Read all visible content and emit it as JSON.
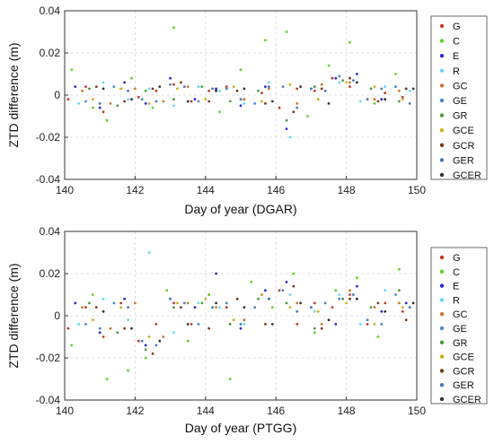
{
  "series_colors": {
    "G": "#c0392b",
    "C": "#5ad42a",
    "E": "#2a2ad6",
    "R": "#66d9f0",
    "GC": "#c7782c",
    "GE": "#4a86c8",
    "GR": "#4f9a3c",
    "GCE": "#c8b020",
    "GCR": "#7a3a1a",
    "GER": "#4a78b8",
    "GCER": "#333333"
  },
  "chart_data": [
    {
      "type": "scatter",
      "title": "",
      "xlabel": "Day of year (DGAR)",
      "ylabel": "ZTD difference (m)",
      "xlim": [
        140,
        150
      ],
      "ylim": [
        -0.04,
        0.04
      ],
      "xticks": [
        "140",
        "142",
        "144",
        "146",
        "148",
        "150"
      ],
      "yticks": [
        "0.04",
        "0.02",
        "0",
        "-0.02",
        "-0.04"
      ],
      "grid": true,
      "legend": "right",
      "legend_entries": [
        "G",
        "C",
        "E",
        "R",
        "GC",
        "GE",
        "GR",
        "GCE",
        "GCR",
        "GER",
        "GCER"
      ],
      "series": [
        {
          "name": "G",
          "x": [
            140.1,
            140.6,
            141.1,
            141.6,
            142.1,
            142.6,
            143.1,
            143.6,
            144.1,
            144.6,
            145.1,
            145.6,
            146.1,
            146.6,
            147.1,
            147.6,
            148.1,
            148.6,
            149.1,
            149.6
          ],
          "y": [
            -0.002,
            0.004,
            -0.008,
            0.003,
            -0.001,
            0.002,
            0.005,
            -0.003,
            0.002,
            0.004,
            -0.002,
            0.001,
            -0.006,
            0.003,
            0.002,
            0.008,
            0.004,
            -0.002,
            0.001,
            -0.001
          ]
        },
        {
          "name": "C",
          "x": [
            140.2,
            140.8,
            141.2,
            141.9,
            142.5,
            143.1,
            143.8,
            144.4,
            145.0,
            145.7,
            146.3,
            146.9,
            147.5,
            148.1,
            148.8,
            149.4
          ],
          "y": [
            0.012,
            -0.006,
            -0.012,
            0.008,
            -0.006,
            0.032,
            0.004,
            -0.008,
            0.012,
            0.026,
            0.03,
            -0.01,
            0.014,
            0.025,
            -0.004,
            0.01
          ]
        },
        {
          "name": "E",
          "x": [
            140.3,
            141.0,
            141.7,
            142.3,
            143.0,
            143.7,
            144.3,
            145.0,
            145.7,
            146.3,
            147.0,
            147.7,
            148.3,
            149.0,
            149.7
          ],
          "y": [
            0.004,
            -0.006,
            0.006,
            -0.004,
            0.008,
            -0.002,
            0.003,
            -0.005,
            0.004,
            -0.016,
            0.003,
            0.008,
            0.01,
            -0.002,
            0.003
          ]
        },
        {
          "name": "R",
          "x": [
            140.4,
            141.1,
            141.8,
            142.4,
            143.1,
            143.8,
            144.4,
            145.1,
            145.8,
            146.4,
            147.1,
            147.8,
            148.4,
            149.1,
            149.8
          ],
          "y": [
            -0.004,
            0.006,
            -0.002,
            0.003,
            -0.005,
            0.004,
            0.002,
            -0.004,
            0.006,
            -0.02,
            0.004,
            0.006,
            -0.003,
            0.004,
            0.002
          ]
        },
        {
          "name": "GC",
          "x": [
            140.5,
            141.3,
            142.0,
            142.8,
            143.5,
            144.3,
            145.1,
            145.8,
            146.6,
            147.3,
            148.1,
            148.8,
            149.5
          ],
          "y": [
            0.002,
            -0.004,
            0.003,
            -0.003,
            0.004,
            0.002,
            -0.002,
            0.003,
            -0.004,
            0.005,
            0.006,
            -0.002,
            0.002
          ]
        },
        {
          "name": "GE",
          "x": [
            140.6,
            141.4,
            142.2,
            143.0,
            143.8,
            144.6,
            145.4,
            146.2,
            147.0,
            147.8,
            148.6,
            149.4
          ],
          "y": [
            -0.003,
            0.004,
            -0.002,
            0.005,
            -0.003,
            0.003,
            -0.004,
            0.004,
            0.003,
            0.009,
            -0.002,
            0.004
          ]
        },
        {
          "name": "GR",
          "x": [
            140.7,
            141.5,
            142.3,
            143.1,
            143.9,
            144.7,
            145.5,
            146.3,
            147.1,
            147.9,
            148.7,
            149.5
          ],
          "y": [
            0.003,
            -0.005,
            0.002,
            -0.002,
            0.004,
            -0.003,
            0.002,
            -0.012,
            0.004,
            0.007,
            0.003,
            -0.003
          ]
        },
        {
          "name": "GCE",
          "x": [
            140.8,
            141.6,
            142.4,
            143.2,
            144.0,
            144.8,
            145.6,
            146.4,
            147.2,
            148.0,
            148.8,
            149.6
          ],
          "y": [
            -0.002,
            0.003,
            -0.004,
            0.003,
            -0.002,
            0.004,
            -0.003,
            0.005,
            -0.002,
            0.006,
            0.004,
            -0.002
          ]
        },
        {
          "name": "GCR",
          "x": [
            140.9,
            141.7,
            142.5,
            143.3,
            144.1,
            144.9,
            145.7,
            146.5,
            147.3,
            148.1,
            148.9,
            149.7
          ],
          "y": [
            0.004,
            -0.003,
            0.003,
            0.006,
            -0.003,
            0.002,
            -0.004,
            -0.008,
            0.003,
            0.008,
            -0.003,
            0.003
          ]
        },
        {
          "name": "GER",
          "x": [
            141.0,
            141.8,
            142.6,
            143.4,
            144.2,
            145.0,
            145.8,
            146.6,
            147.4,
            148.2,
            149.0,
            149.8
          ],
          "y": [
            -0.004,
            0.002,
            -0.003,
            0.004,
            0.003,
            -0.002,
            0.004,
            -0.006,
            0.002,
            0.007,
            0.003,
            -0.004
          ]
        },
        {
          "name": "GCER",
          "x": [
            141.1,
            141.9,
            142.7,
            143.5,
            144.3,
            145.1,
            145.9,
            146.7,
            147.5,
            148.3,
            149.1,
            149.9
          ],
          "y": [
            0.003,
            -0.002,
            0.004,
            -0.003,
            0.002,
            0.003,
            -0.003,
            0.004,
            -0.004,
            0.006,
            -0.002,
            0.003
          ]
        }
      ]
    },
    {
      "type": "scatter",
      "title": "",
      "xlabel": "Day of year (PTGG)",
      "ylabel": "ZTD difference (m)",
      "xlim": [
        140,
        150
      ],
      "ylim": [
        -0.04,
        0.04
      ],
      "xticks": [
        "140",
        "142",
        "144",
        "146",
        "148",
        "150"
      ],
      "yticks": [
        "0.04",
        "0.02",
        "0",
        "-0.02",
        "-0.04"
      ],
      "grid": true,
      "legend": "right",
      "legend_entries": [
        "G",
        "C",
        "E",
        "R",
        "GC",
        "GE",
        "GR",
        "GCE",
        "GCR",
        "GER",
        "GCER"
      ],
      "series": [
        {
          "name": "G",
          "x": [
            140.1,
            140.6,
            141.1,
            141.6,
            142.1,
            142.6,
            143.1,
            143.6,
            144.1,
            144.6,
            145.1,
            145.6,
            146.1,
            146.6,
            147.1,
            147.6,
            148.1,
            148.6,
            149.1,
            149.6
          ],
          "y": [
            -0.006,
            0.004,
            -0.01,
            0.006,
            -0.012,
            -0.004,
            0.006,
            -0.004,
            0.01,
            0.004,
            -0.002,
            0.01,
            0.012,
            -0.004,
            0.006,
            0.004,
            0.01,
            -0.004,
            0.006,
            0.002
          ]
        },
        {
          "name": "C",
          "x": [
            140.2,
            140.8,
            141.2,
            141.8,
            142.3,
            142.9,
            143.5,
            144.1,
            144.7,
            145.3,
            145.9,
            146.5,
            147.1,
            147.7,
            148.3,
            148.9,
            149.5
          ],
          "y": [
            -0.014,
            0.01,
            -0.03,
            -0.026,
            -0.02,
            0.012,
            -0.012,
            0.01,
            -0.03,
            0.016,
            0.004,
            0.02,
            -0.008,
            0.012,
            0.018,
            -0.01,
            0.022
          ]
        },
        {
          "name": "E",
          "x": [
            140.3,
            141.0,
            141.7,
            142.3,
            143.0,
            143.7,
            144.3,
            145.0,
            145.7,
            146.3,
            147.0,
            147.7,
            148.3,
            149.0,
            149.7
          ],
          "y": [
            0.006,
            -0.008,
            0.008,
            -0.014,
            0.008,
            0.004,
            0.02,
            -0.006,
            0.012,
            0.016,
            0.004,
            -0.004,
            0.014,
            0.002,
            0.006
          ]
        },
        {
          "name": "R",
          "x": [
            140.4,
            141.1,
            141.8,
            142.4,
            143.1,
            143.8,
            144.4,
            145.1,
            145.8,
            146.4,
            147.1,
            147.8,
            148.4,
            149.1,
            149.8
          ],
          "y": [
            -0.004,
            0.008,
            -0.002,
            0.03,
            -0.008,
            0.006,
            0.004,
            -0.004,
            0.008,
            0.01,
            0.002,
            0.01,
            -0.004,
            0.012,
            0.004
          ]
        },
        {
          "name": "GC",
          "x": [
            140.5,
            141.3,
            142.0,
            142.8,
            143.5,
            144.3,
            145.1,
            145.8,
            146.6,
            147.3,
            148.1,
            148.8,
            149.5
          ],
          "y": [
            0.004,
            -0.006,
            0.006,
            -0.01,
            0.006,
            0.004,
            -0.002,
            0.008,
            0.006,
            -0.004,
            0.012,
            0.004,
            0.006
          ]
        },
        {
          "name": "GE",
          "x": [
            140.6,
            141.4,
            142.2,
            143.0,
            143.8,
            144.6,
            145.4,
            146.2,
            147.0,
            147.8,
            148.6,
            149.4
          ],
          "y": [
            -0.004,
            0.006,
            -0.012,
            0.008,
            -0.004,
            0.006,
            0.004,
            0.012,
            0.004,
            0.008,
            -0.002,
            0.01
          ]
        },
        {
          "name": "GR",
          "x": [
            140.7,
            141.5,
            142.3,
            143.1,
            143.9,
            144.7,
            145.5,
            146.3,
            147.1,
            147.9,
            148.7,
            149.5
          ],
          "y": [
            0.006,
            -0.008,
            -0.016,
            0.004,
            0.006,
            -0.004,
            0.008,
            0.006,
            -0.006,
            0.008,
            0.004,
            0.012
          ]
        },
        {
          "name": "GCE",
          "x": [
            140.8,
            141.6,
            142.4,
            143.2,
            144.0,
            144.8,
            145.6,
            146.4,
            147.2,
            148.0,
            148.8,
            149.6
          ],
          "y": [
            -0.002,
            0.004,
            -0.01,
            0.006,
            0.008,
            -0.002,
            0.01,
            0.004,
            0.002,
            0.006,
            -0.004,
            0.004
          ]
        },
        {
          "name": "GCR",
          "x": [
            140.9,
            141.7,
            142.5,
            143.3,
            144.1,
            144.9,
            145.7,
            146.5,
            147.3,
            148.1,
            148.9,
            149.7
          ],
          "y": [
            0.004,
            -0.006,
            -0.018,
            0.004,
            -0.006,
            0.008,
            -0.004,
            0.014,
            -0.006,
            0.008,
            0.006,
            -0.002
          ]
        },
        {
          "name": "GER",
          "x": [
            141.0,
            141.8,
            142.6,
            143.4,
            144.2,
            145.0,
            145.8,
            146.6,
            147.4,
            148.2,
            149.0,
            149.8
          ],
          "y": [
            -0.006,
            0.004,
            -0.014,
            0.006,
            0.004,
            -0.004,
            0.008,
            0.002,
            0.006,
            0.01,
            -0.004,
            0.004
          ]
        },
        {
          "name": "GCER",
          "x": [
            141.1,
            141.9,
            142.7,
            143.5,
            144.3,
            145.1,
            145.9,
            146.7,
            147.5,
            148.3,
            149.1,
            149.9
          ],
          "y": [
            0.002,
            -0.006,
            -0.012,
            -0.004,
            0.006,
            0.004,
            -0.004,
            0.006,
            -0.002,
            0.008,
            0.002,
            0.006
          ]
        }
      ]
    }
  ]
}
